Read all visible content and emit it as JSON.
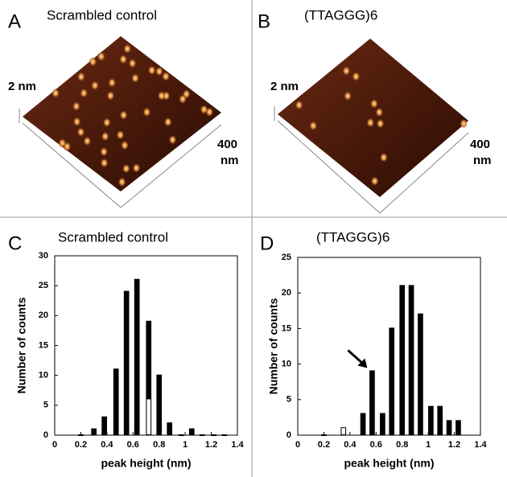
{
  "images": [
    {
      "label": "A",
      "title": "Scrambled control",
      "z_scale": "2 nm",
      "xy_scale": "400",
      "xy_unit": "nm"
    },
    {
      "label": "B",
      "title": "(TTAGGG)6",
      "z_scale": "2 nm",
      "xy_scale": "400",
      "xy_unit": "nm"
    }
  ],
  "chart_data": [
    {
      "type": "bar",
      "label": "C",
      "title": "Scrambled control",
      "x_label": "peak height (nm)",
      "y_label": "Number of counts",
      "x": [
        0.2,
        0.3,
        0.38,
        0.47,
        0.55,
        0.63,
        0.72,
        0.8,
        0.88,
        0.97,
        1.05,
        1.13,
        1.22,
        1.3
      ],
      "series": [
        {
          "color": "#000000",
          "values": [
            0,
            1,
            3,
            11,
            24,
            26,
            19,
            10,
            2,
            0,
            1,
            0,
            0,
            0
          ]
        },
        {
          "color": "#ffffff",
          "values": [
            null,
            null,
            null,
            null,
            null,
            null,
            6,
            null,
            null,
            null,
            null,
            null,
            null,
            null
          ]
        }
      ],
      "xlim": [
        0,
        1.4
      ],
      "xticks": [
        0,
        0.2,
        0.4,
        0.6,
        0.8,
        1,
        1.2,
        1.4
      ],
      "ylim": [
        0,
        30
      ],
      "yticks": [
        0,
        5,
        10,
        15,
        20,
        25,
        30
      ]
    },
    {
      "type": "bar",
      "label": "D",
      "title": "(TTAGGG)6",
      "x_label": "peak height (nm)",
      "y_label": "Number of counts",
      "x": [
        0.2,
        0.35,
        0.5,
        0.57,
        0.65,
        0.72,
        0.8,
        0.87,
        0.94,
        1.02,
        1.09,
        1.16,
        1.23
      ],
      "series": [
        {
          "color": "#000000",
          "values": [
            0,
            null,
            3,
            9,
            3,
            15,
            21,
            21,
            17,
            4,
            4,
            2,
            2
          ]
        },
        {
          "color": "#ffffff",
          "values": [
            null,
            1,
            null,
            null,
            null,
            null,
            null,
            null,
            null,
            null,
            null,
            null,
            null
          ]
        }
      ],
      "xlim": [
        0,
        1.4
      ],
      "xticks": [
        0,
        0.2,
        0.4,
        0.6,
        0.8,
        1,
        1.2,
        1.4
      ],
      "ylim": [
        0,
        25
      ],
      "yticks": [
        0,
        5,
        10,
        15,
        20,
        25
      ]
    }
  ]
}
